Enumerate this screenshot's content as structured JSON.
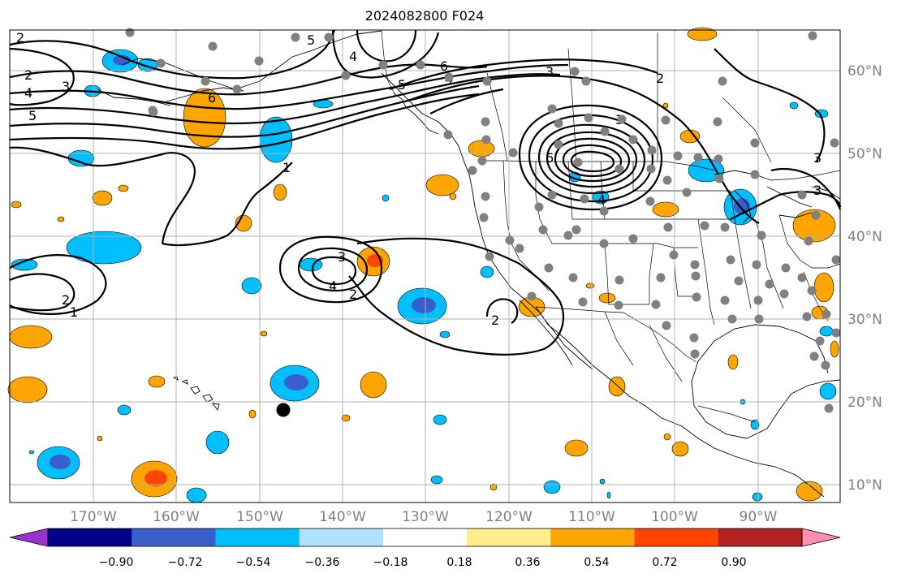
{
  "title": "2024082800 F024",
  "longitude_labels": [
    "170°W",
    "160°W",
    "150°W",
    "140°W",
    "130°W",
    "120°W",
    "110°W",
    "100°W",
    "90°W"
  ],
  "latitude_labels": [
    "60°N",
    "50°N",
    "40°N",
    "30°N",
    "20°N",
    "10°N"
  ],
  "colorbar": {
    "ticks": [
      "−0.90",
      "−0.72",
      "−0.54",
      "−0.36",
      "−0.18",
      "0.18",
      "0.36",
      "0.54",
      "0.72",
      "0.90"
    ],
    "colors": [
      "#9932cc",
      "#00008b",
      "#3a5fcd",
      "#00bfff",
      "#b0e2ff",
      "#ffffff",
      "#ffec8b",
      "#ffa500",
      "#ff4500",
      "#b22222",
      "#ff8fb0"
    ]
  },
  "contour_labels": [
    "2",
    "2",
    "4",
    "3",
    "5",
    "5",
    "4",
    "5",
    "6",
    "6",
    "4",
    "3",
    "2",
    "3",
    "6",
    "4",
    "3",
    "1",
    "3",
    "4",
    "2",
    "2",
    "1",
    "2",
    "3"
  ],
  "shading_colors": {
    "light_blue": "#b0e2ff",
    "blue": "#00bfff",
    "dark_blue": "#3a5fcd",
    "yellow": "#ffec8b",
    "orange": "#ffa500",
    "red": "#ff4500"
  },
  "marker_colors": {
    "station": "#808080",
    "center": "#000000"
  }
}
